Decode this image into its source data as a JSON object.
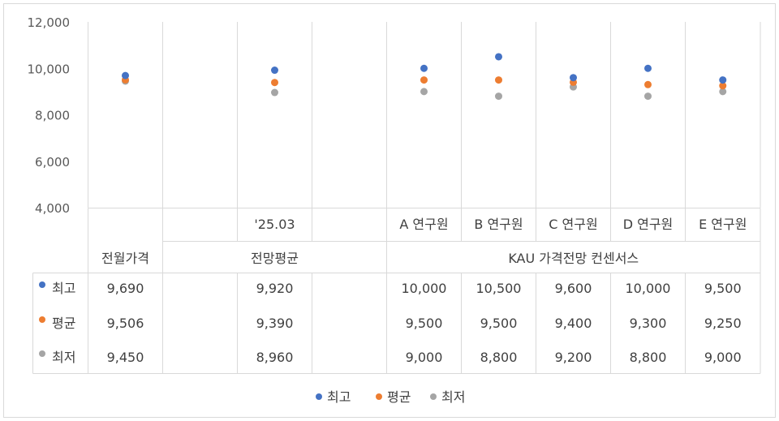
{
  "chart_data": {
    "type": "scatter",
    "ylim": [
      4000,
      12000
    ],
    "y_ticks": [
      "4,000",
      "6,000",
      "8,000",
      "10,000",
      "12,000"
    ],
    "y_tick_values": [
      4000,
      6000,
      8000,
      10000,
      12000
    ],
    "categories": [
      "",
      "",
      "'25.03",
      "",
      "A 연구원",
      "B 연구원",
      "C 연구원",
      "D 연구원",
      "E 연구원"
    ],
    "groups": [
      {
        "label": "전월가격"
      },
      {
        "label": "전망평균"
      },
      {
        "label": "KAU 가격전망 컨센서스"
      }
    ],
    "series": [
      {
        "name": "최고",
        "color": "#4472c4",
        "values": [
          9690,
          null,
          9920,
          null,
          10000,
          10500,
          9600,
          10000,
          9500
        ],
        "labels": [
          "9,690",
          "",
          "9,920",
          "",
          "10,000",
          "10,500",
          "9,600",
          "10,000",
          "9,500"
        ]
      },
      {
        "name": "평균",
        "color": "#ed7d31",
        "values": [
          9506,
          null,
          9390,
          null,
          9500,
          9500,
          9400,
          9300,
          9250
        ],
        "labels": [
          "9,506",
          "",
          "9,390",
          "",
          "9,500",
          "9,500",
          "9,400",
          "9,300",
          "9,250"
        ]
      },
      {
        "name": "최저",
        "color": "#a5a5a5",
        "values": [
          9450,
          null,
          8960,
          null,
          9000,
          8800,
          9200,
          8800,
          9000
        ],
        "labels": [
          "9,450",
          "",
          "8,960",
          "",
          "9,000",
          "8,800",
          "9,200",
          "8,800",
          "9,000"
        ]
      }
    ],
    "legend_position": "bottom",
    "grid": "vertical",
    "data_table": true
  }
}
